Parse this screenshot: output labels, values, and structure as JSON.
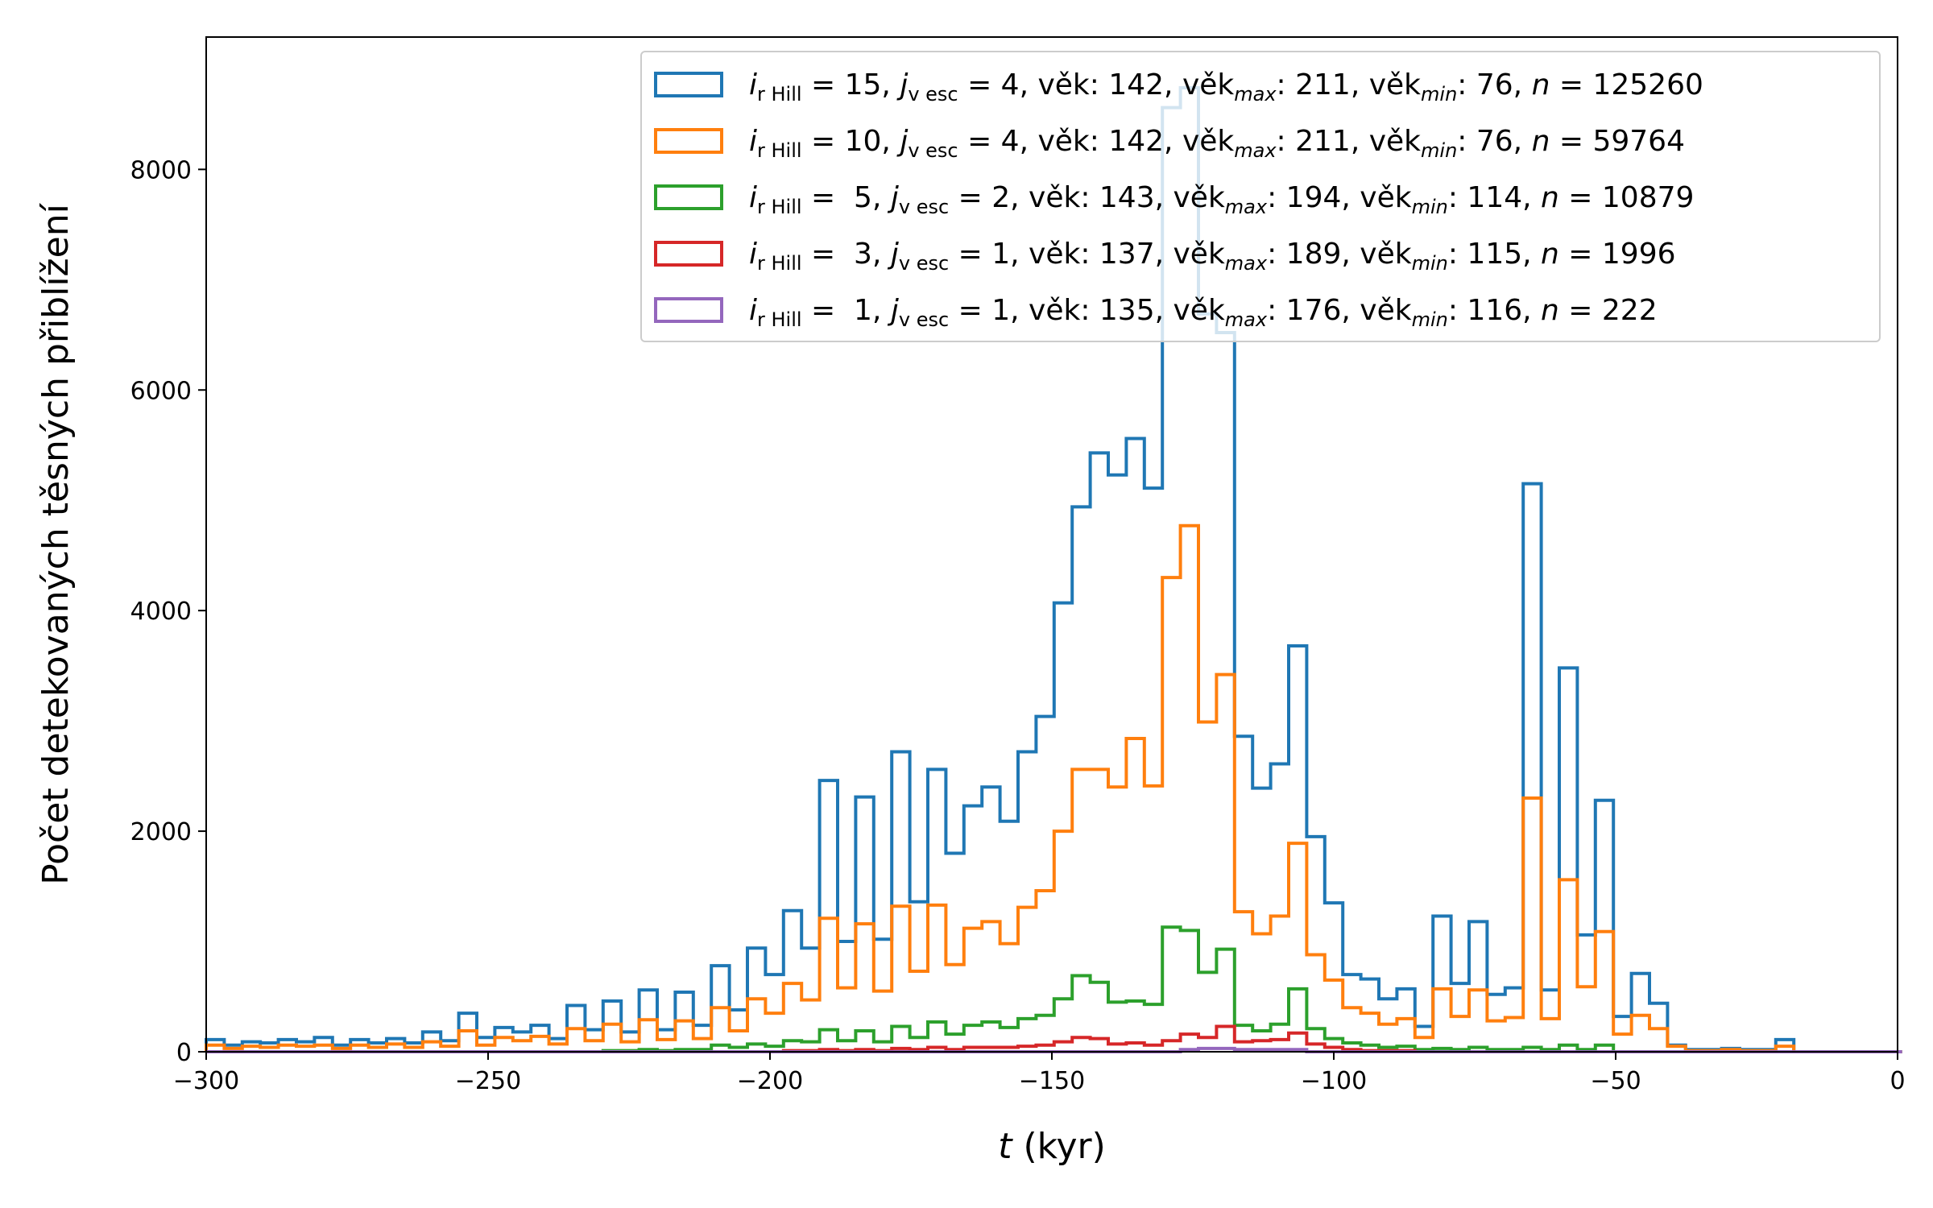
{
  "chart_data": {
    "type": "histogram-step",
    "xlabel_var": "t",
    "xlabel_unit": " (kyr)",
    "ylabel": "Počet detekovaných těsných přiblížení",
    "xlim": [
      -300,
      0
    ],
    "ylim": [
      0,
      9200
    ],
    "xticks": [
      -300,
      -250,
      -200,
      -150,
      -100,
      -50,
      0
    ],
    "xtick_labels": [
      "−300",
      "−250",
      "−200",
      "−150",
      "−100",
      "−50",
      "0"
    ],
    "yticks": [
      0,
      2000,
      4000,
      6000,
      8000
    ],
    "ytick_labels": [
      "0",
      "2000",
      "4000",
      "6000",
      "8000"
    ],
    "bin_start": -300,
    "bin_width": 3.2,
    "legend_position": "upper right",
    "series": [
      {
        "color": "#1f77b4",
        "legend": {
          "i": "15",
          "j": "4",
          "vek": "142",
          "vekmax": "211",
          "vekmin": "76",
          "n": "125260",
          "ipad": ""
        },
        "values": [
          110,
          60,
          90,
          80,
          110,
          90,
          130,
          60,
          110,
          80,
          120,
          80,
          180,
          100,
          350,
          130,
          220,
          180,
          240,
          120,
          420,
          200,
          460,
          180,
          560,
          200,
          540,
          240,
          780,
          380,
          940,
          700,
          1280,
          940,
          2460,
          1000,
          2310,
          1020,
          2720,
          1360,
          2560,
          1800,
          2230,
          2400,
          2090,
          2720,
          3040,
          4070,
          4940,
          5430,
          5230,
          5560,
          5110,
          8560,
          8740,
          6690,
          6520,
          2860,
          2390,
          2610,
          3680,
          1950,
          1350,
          700,
          660,
          480,
          570,
          230,
          1230,
          620,
          1180,
          520,
          580,
          5150,
          560,
          3480,
          1060,
          2280,
          320,
          710,
          440,
          60,
          20,
          20,
          30,
          20,
          20,
          110,
          0,
          0,
          0,
          0,
          0,
          0
        ]
      },
      {
        "color": "#ff7f0e",
        "legend": {
          "i": "10",
          "j": "4",
          "vek": "142",
          "vekmax": "211",
          "vekmin": "76",
          "n": "59764",
          "ipad": ""
        },
        "values": [
          60,
          30,
          50,
          40,
          60,
          50,
          60,
          30,
          60,
          40,
          70,
          40,
          90,
          50,
          190,
          60,
          130,
          100,
          140,
          70,
          210,
          100,
          250,
          90,
          290,
          110,
          280,
          120,
          400,
          190,
          480,
          350,
          620,
          470,
          1210,
          580,
          1160,
          550,
          1320,
          730,
          1330,
          790,
          1120,
          1180,
          980,
          1310,
          1460,
          2000,
          2560,
          2560,
          2400,
          2840,
          2410,
          4300,
          4770,
          2990,
          3420,
          1270,
          1070,
          1230,
          1890,
          880,
          650,
          400,
          350,
          250,
          300,
          130,
          570,
          320,
          560,
          280,
          310,
          2300,
          300,
          1560,
          590,
          1090,
          160,
          330,
          210,
          50,
          10,
          10,
          20,
          10,
          10,
          50,
          0,
          0,
          0,
          0,
          0,
          0
        ]
      },
      {
        "color": "#2ca02c",
        "legend": {
          "i": "5",
          "j": "2",
          "vek": "143",
          "vekmax": "194",
          "vekmin": "114",
          "n": "10879",
          "ipad": " "
        },
        "values": [
          0,
          0,
          0,
          0,
          0,
          0,
          0,
          0,
          0,
          0,
          0,
          0,
          0,
          0,
          0,
          0,
          0,
          0,
          0,
          0,
          0,
          0,
          10,
          10,
          20,
          10,
          20,
          20,
          60,
          40,
          70,
          50,
          100,
          90,
          200,
          100,
          190,
          90,
          230,
          130,
          270,
          160,
          240,
          270,
          220,
          300,
          330,
          480,
          690,
          630,
          450,
          460,
          430,
          1130,
          1100,
          720,
          930,
          240,
          190,
          250,
          570,
          210,
          120,
          80,
          60,
          40,
          50,
          20,
          30,
          20,
          40,
          20,
          20,
          40,
          20,
          60,
          20,
          60,
          0,
          0,
          0,
          0,
          0,
          0,
          0,
          0,
          0,
          0,
          0,
          0,
          0,
          0,
          0,
          0
        ]
      },
      {
        "color": "#d62728",
        "legend": {
          "i": "3",
          "j": "1",
          "vek": "137",
          "vekmax": "189",
          "vekmin": "115",
          "n": "1996",
          "ipad": " "
        },
        "values": [
          0,
          0,
          0,
          0,
          0,
          0,
          0,
          0,
          0,
          0,
          0,
          0,
          0,
          0,
          0,
          0,
          0,
          0,
          0,
          0,
          0,
          0,
          0,
          0,
          0,
          0,
          0,
          0,
          0,
          0,
          0,
          0,
          10,
          10,
          20,
          10,
          20,
          10,
          30,
          20,
          40,
          20,
          40,
          40,
          40,
          50,
          60,
          90,
          130,
          120,
          70,
          80,
          60,
          100,
          160,
          130,
          230,
          90,
          100,
          110,
          170,
          70,
          40,
          20,
          10,
          10,
          10,
          0,
          0,
          0,
          0,
          0,
          0,
          0,
          0,
          0,
          0,
          0,
          0,
          0,
          0,
          0,
          0,
          0,
          0,
          0,
          0,
          0,
          0,
          0,
          0,
          0,
          0,
          0
        ]
      },
      {
        "color": "#9467bd",
        "legend": {
          "i": "1",
          "j": "1",
          "vek": "135",
          "vekmax": "176",
          "vekmin": "116",
          "n": "222",
          "ipad": " "
        },
        "values": [
          0,
          0,
          0,
          0,
          0,
          0,
          0,
          0,
          0,
          0,
          0,
          0,
          0,
          0,
          0,
          0,
          0,
          0,
          0,
          0,
          0,
          0,
          0,
          0,
          0,
          0,
          0,
          0,
          0,
          0,
          0,
          0,
          0,
          0,
          0,
          0,
          0,
          0,
          0,
          0,
          0,
          0,
          0,
          0,
          0,
          0,
          0,
          0,
          0,
          0,
          0,
          0,
          0,
          0,
          20,
          30,
          30,
          20,
          20,
          20,
          20,
          0,
          0,
          0,
          0,
          0,
          0,
          0,
          0,
          0,
          0,
          0,
          0,
          0,
          0,
          0,
          0,
          0,
          0,
          0,
          0,
          0,
          0,
          0,
          0,
          0,
          0,
          0,
          0,
          0,
          0,
          0,
          0,
          0
        ]
      }
    ]
  },
  "legend_labels": {
    "i_letter": "i",
    "i_sub": "r Hill",
    "j_letter": "j",
    "j_sub": "v esc",
    "vek_label": "věk",
    "max_sub": "max",
    "min_sub": "min",
    "n_letter": "n"
  }
}
